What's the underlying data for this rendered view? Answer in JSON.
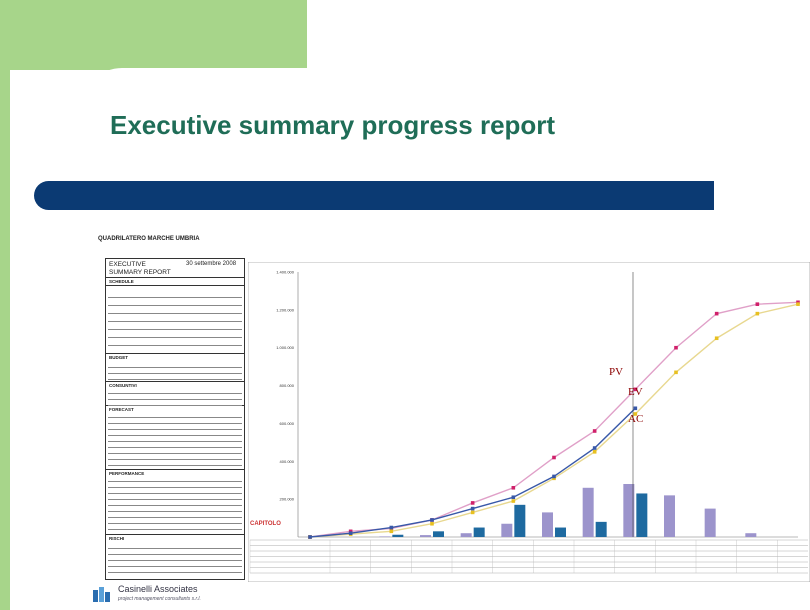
{
  "slide": {
    "title": "Executive summary progress report"
  },
  "document": {
    "heading": "QUADRILATERO MARCHE UMBRIA",
    "report_title": "EXECUTIVE SUMMARY REPORT",
    "report_date": "30 settembre 2008",
    "sections": [
      "SCHEDULE",
      "BUDGET",
      "CONSUNTIVI",
      "FORECAST",
      "PERFORMANCE",
      "RISCHI"
    ]
  },
  "chart_data": {
    "type": "line",
    "annotations": [
      "PV",
      "EV",
      "AC"
    ],
    "x_count": 13,
    "ylim": [
      0,
      1400000
    ],
    "yticks": [
      "1.400.000",
      "1.200.000",
      "1.000.000",
      "800.000",
      "600.000",
      "400.000",
      "200.000"
    ],
    "series": [
      {
        "name": "PV",
        "color": "#e0a0c8",
        "marker_color": "#d0206a",
        "values": [
          0,
          30000,
          45000,
          90000,
          180000,
          260000,
          420000,
          560000,
          780000,
          1000000,
          1180000,
          1230000,
          1240000
        ]
      },
      {
        "name": "EV",
        "color": "#e8d890",
        "marker_color": "#e8c020",
        "values": [
          0,
          15000,
          30000,
          70000,
          130000,
          190000,
          310000,
          450000,
          650000,
          870000,
          1050000,
          1180000,
          1230000
        ]
      },
      {
        "name": "AC",
        "color": "#3858a8",
        "marker_color": "#3858a8",
        "values": [
          0,
          20000,
          50000,
          90000,
          150000,
          210000,
          320000,
          470000,
          680000,
          null,
          null,
          null,
          null
        ]
      }
    ],
    "bars": {
      "light": [
        0,
        0,
        3000,
        10000,
        20000,
        70000,
        130000,
        260000,
        280000,
        220000,
        150000,
        20000,
        0
      ],
      "dark": [
        0,
        0,
        12000,
        30000,
        50000,
        170000,
        50000,
        80000,
        230000,
        0,
        0,
        0,
        0
      ],
      "light_color": "#9c94cc",
      "dark_color": "#1e6aa0"
    }
  },
  "footer": {
    "company": "Casinelli Associates",
    "tagline": "project management consultants s.r.l."
  },
  "watermark": "CAPITOLO"
}
